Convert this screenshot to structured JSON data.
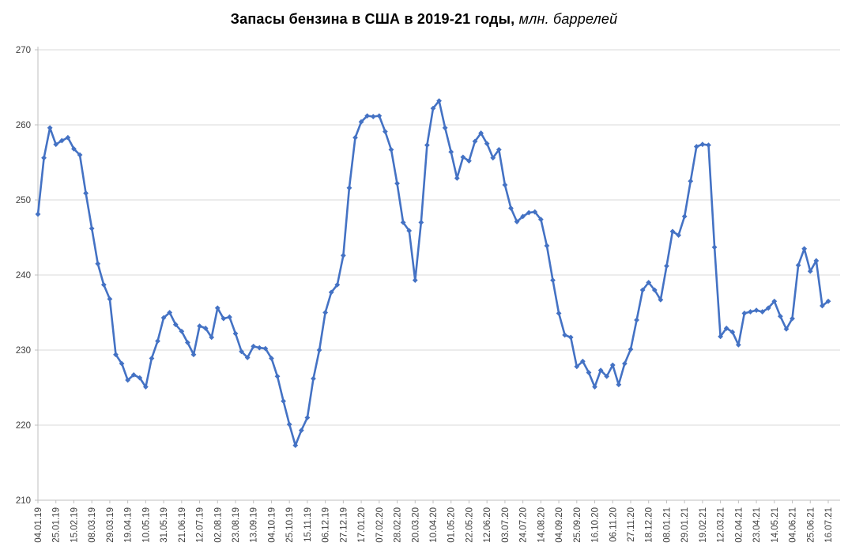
{
  "title": {
    "main": "Запасы бензина в США в 2019-21 годы,",
    "unit": " млн. баррелей"
  },
  "chart_data": {
    "type": "line",
    "description": "Weekly US gasoline inventories 2019-2021, million barrels",
    "line_color": "#4472C4",
    "grid_color": "#d9d9d9",
    "marker": "diamond",
    "grid": true,
    "legend": "none",
    "ylim": [
      210,
      270
    ],
    "y_ticks": [
      210,
      220,
      230,
      240,
      250,
      260,
      270
    ],
    "x_label_every": 3,
    "x_labels": [
      "04.01.19",
      "25.01.19",
      "15.02.19",
      "08.03.19",
      "29.03.19",
      "19.04.19",
      "10.05.19",
      "31.05.19",
      "21.06.19",
      "12.07.19",
      "02.08.19",
      "23.08.19",
      "13.09.19",
      "04.10.19",
      "25.10.19",
      "15.11.19",
      "06.12.19",
      "27.12.19",
      "17.01.20",
      "07.02.20",
      "28.02.20",
      "20.03.20",
      "10.04.20",
      "01.05.20",
      "22.05.20",
      "12.06.20",
      "03.07.20",
      "24.07.20",
      "14.08.20",
      "04.09.20",
      "25.09.20",
      "16.10.20",
      "06.11.20",
      "27.11.20",
      "18.12.20",
      "08.01.21",
      "29.01.21",
      "19.02.21",
      "12.03.21",
      "02.04.21",
      "23.04.21",
      "14.05.21",
      "04.06.21",
      "25.06.21",
      "16.07.21"
    ],
    "values": [
      248.1,
      255.6,
      259.6,
      257.4,
      257.9,
      258.3,
      256.8,
      256.0,
      250.9,
      246.2,
      241.5,
      238.7,
      236.8,
      229.4,
      228.2,
      226.0,
      226.7,
      226.3,
      225.1,
      228.9,
      231.2,
      234.3,
      235.0,
      233.4,
      232.5,
      231.0,
      229.4,
      233.2,
      232.9,
      231.7,
      235.6,
      234.2,
      234.4,
      232.2,
      229.8,
      229.0,
      230.5,
      230.3,
      230.2,
      228.9,
      226.5,
      223.2,
      220.1,
      217.3,
      219.3,
      221.0,
      226.2,
      230.0,
      235.0,
      237.7,
      238.7,
      242.6,
      251.6,
      258.3,
      260.4,
      261.2,
      261.1,
      261.2,
      259.1,
      256.7,
      252.2,
      247.0,
      245.9,
      239.3,
      247.0,
      257.3,
      262.2,
      263.2,
      259.6,
      256.4,
      252.9,
      255.7,
      255.2,
      257.8,
      258.9,
      257.5,
      255.6,
      256.7,
      252.0,
      248.9,
      247.1,
      247.8,
      248.3,
      248.4,
      247.4,
      243.9,
      239.3,
      234.9,
      232.0,
      231.7,
      227.8,
      228.5,
      227.0,
      225.1,
      227.3,
      226.5,
      228.0,
      225.4,
      228.2,
      230.1,
      234.0,
      238.0,
      239.0,
      238.0,
      236.7,
      241.2,
      245.8,
      245.3,
      247.8,
      252.5,
      257.1,
      257.4,
      257.3,
      243.7,
      231.8,
      232.9,
      232.4,
      230.7,
      234.9,
      235.1,
      235.3,
      235.1,
      235.6,
      236.5,
      234.5,
      232.8,
      234.2,
      241.3,
      243.5,
      240.5,
      241.9,
      235.9,
      236.5
    ]
  }
}
